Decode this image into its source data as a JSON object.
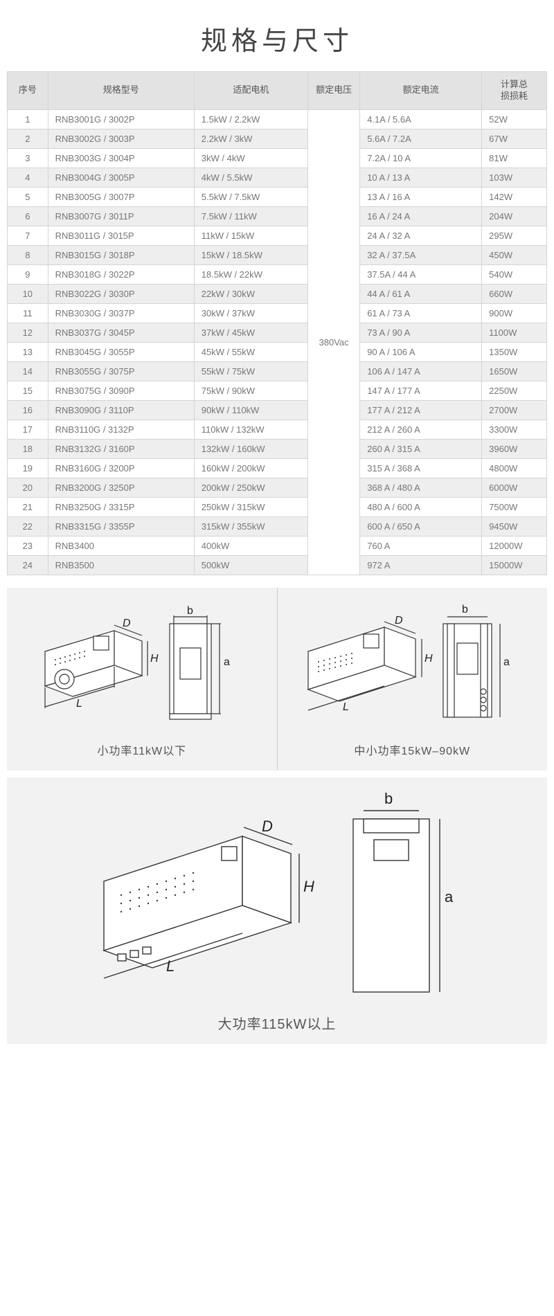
{
  "title": "规格与尺寸",
  "table": {
    "headers": {
      "idx": "序号",
      "model": "规格型号",
      "motor": "适配电机",
      "voltage": "额定电压",
      "current": "额定电流",
      "loss": "计算总\n损损耗"
    },
    "voltage_merged": "380Vac",
    "rows": [
      {
        "idx": "1",
        "model": "RNB3001G / 3002P",
        "motor": "1.5kW / 2.2kW",
        "current": "4.1A / 5.6A",
        "loss": "52W"
      },
      {
        "idx": "2",
        "model": "RNB3002G / 3003P",
        "motor": "2.2kW / 3kW",
        "current": "5.6A / 7.2A",
        "loss": "67W"
      },
      {
        "idx": "3",
        "model": "RNB3003G / 3004P",
        "motor": "3kW / 4kW",
        "current": "7.2A / 10 A",
        "loss": "81W"
      },
      {
        "idx": "4",
        "model": "RNB3004G / 3005P",
        "motor": "4kW / 5.5kW",
        "current": "10 A / 13 A",
        "loss": "103W"
      },
      {
        "idx": "5",
        "model": "RNB3005G / 3007P",
        "motor": "5.5kW / 7.5kW",
        "current": "13 A / 16 A",
        "loss": "142W"
      },
      {
        "idx": "6",
        "model": "RNB3007G / 3011P",
        "motor": "7.5kW / 11kW",
        "current": "16 A / 24 A",
        "loss": "204W"
      },
      {
        "idx": "7",
        "model": "RNB3011G / 3015P",
        "motor": "11kW / 15kW",
        "current": "24 A / 32 A",
        "loss": "295W"
      },
      {
        "idx": "8",
        "model": "RNB3015G / 3018P",
        "motor": "15kW / 18.5kW",
        "current": "32 A / 37.5A",
        "loss": "450W"
      },
      {
        "idx": "9",
        "model": "RNB3018G / 3022P",
        "motor": "18.5kW / 22kW",
        "current": "37.5A / 44 A",
        "loss": "540W"
      },
      {
        "idx": "10",
        "model": "RNB3022G / 3030P",
        "motor": "22kW / 30kW",
        "current": "44 A / 61 A",
        "loss": "660W"
      },
      {
        "idx": "11",
        "model": "RNB3030G / 3037P",
        "motor": "30kW / 37kW",
        "current": "61 A / 73 A",
        "loss": "900W"
      },
      {
        "idx": "12",
        "model": "RNB3037G / 3045P",
        "motor": "37kW / 45kW",
        "current": "73 A / 90 A",
        "loss": "1100W"
      },
      {
        "idx": "13",
        "model": "RNB3045G / 3055P",
        "motor": "45kW / 55kW",
        "current": "90 A / 106 A",
        "loss": "1350W"
      },
      {
        "idx": "14",
        "model": "RNB3055G / 3075P",
        "motor": "55kW / 75kW",
        "current": "106 A / 147 A",
        "loss": "1650W"
      },
      {
        "idx": "15",
        "model": "RNB3075G / 3090P",
        "motor": "75kW / 90kW",
        "current": "147 A / 177 A",
        "loss": "2250W"
      },
      {
        "idx": "16",
        "model": "RNB3090G / 3110P",
        "motor": "90kW / 110kW",
        "current": "177 A / 212 A",
        "loss": "2700W"
      },
      {
        "idx": "17",
        "model": "RNB3110G / 3132P",
        "motor": "110kW / 132kW",
        "current": "212 A / 260 A",
        "loss": "3300W"
      },
      {
        "idx": "18",
        "model": "RNB3132G / 3160P",
        "motor": "132kW / 160kW",
        "current": "260 A / 315 A",
        "loss": "3960W"
      },
      {
        "idx": "19",
        "model": "RNB3160G / 3200P",
        "motor": "160kW / 200kW",
        "current": "315 A / 368 A",
        "loss": "4800W"
      },
      {
        "idx": "20",
        "model": "RNB3200G / 3250P",
        "motor": "200kW / 250kW",
        "current": "368 A / 480 A",
        "loss": "6000W"
      },
      {
        "idx": "21",
        "model": "RNB3250G / 3315P",
        "motor": "250kW / 315kW",
        "current": "480 A / 600 A",
        "loss": "7500W"
      },
      {
        "idx": "22",
        "model": "RNB3315G / 3355P",
        "motor": "315kW / 355kW",
        "current": "600 A / 650 A",
        "loss": "9450W"
      },
      {
        "idx": "23",
        "model": "RNB3400",
        "motor": "400kW",
        "current": "760 A",
        "loss": "12000W"
      },
      {
        "idx": "24",
        "model": "RNB3500",
        "motor": "500kW",
        "current": "972 A",
        "loss": "15000W"
      }
    ]
  },
  "diagrams": {
    "small": {
      "caption": "小功率11kW以下",
      "labels": {
        "L": "L",
        "D": "D",
        "H": "H",
        "a": "a",
        "b": "b"
      }
    },
    "medium": {
      "caption": "中小功率15kW–90kW",
      "labels": {
        "L": "L",
        "D": "D",
        "H": "H",
        "a": "a",
        "b": "b"
      }
    },
    "large": {
      "caption": "大功率115kW以上",
      "labels": {
        "L": "L",
        "D": "D",
        "H": "H",
        "a": "a",
        "b": "b"
      }
    }
  },
  "colors": {
    "page_bg": "#ffffff",
    "header_bg": "#e3e3e3",
    "border": "#d5d5d5",
    "row_alt": "#eeeeee",
    "diagram_bg": "#f2f2f2",
    "text": "#555555",
    "text_light": "#777777",
    "stroke": "#333333"
  }
}
